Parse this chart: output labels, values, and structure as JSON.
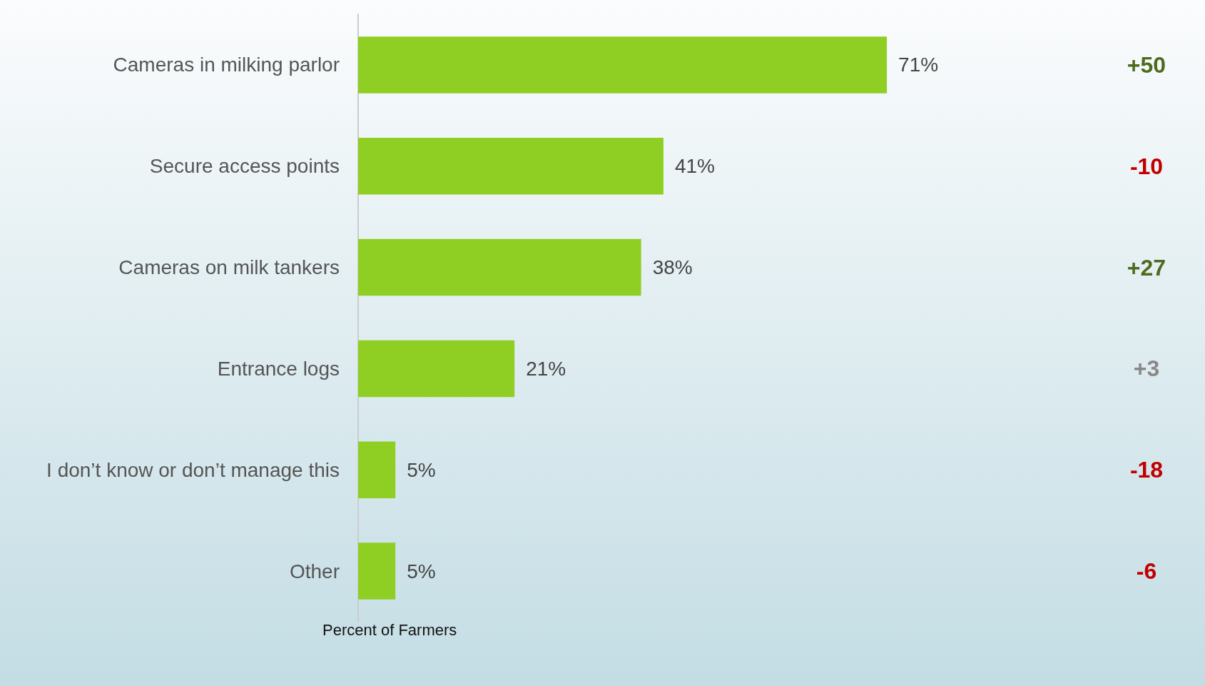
{
  "chart_data": {
    "type": "bar",
    "orientation": "horizontal",
    "xlabel": "Percent of Farmers",
    "categories": [
      "Cameras in milking parlor",
      "Secure access points",
      "Cameras on milk tankers",
      "Entrance logs",
      "I don’t know or don’t manage this",
      "Other"
    ],
    "values": [
      71,
      41,
      38,
      21,
      5,
      5
    ],
    "color": "#8fcf24",
    "value_labels": [
      "71%",
      "41%",
      "38%",
      "21%",
      "5%",
      "5%"
    ],
    "annotations": [
      "+50",
      "-10",
      "+27",
      "+3",
      "-18",
      "-6"
    ]
  }
}
